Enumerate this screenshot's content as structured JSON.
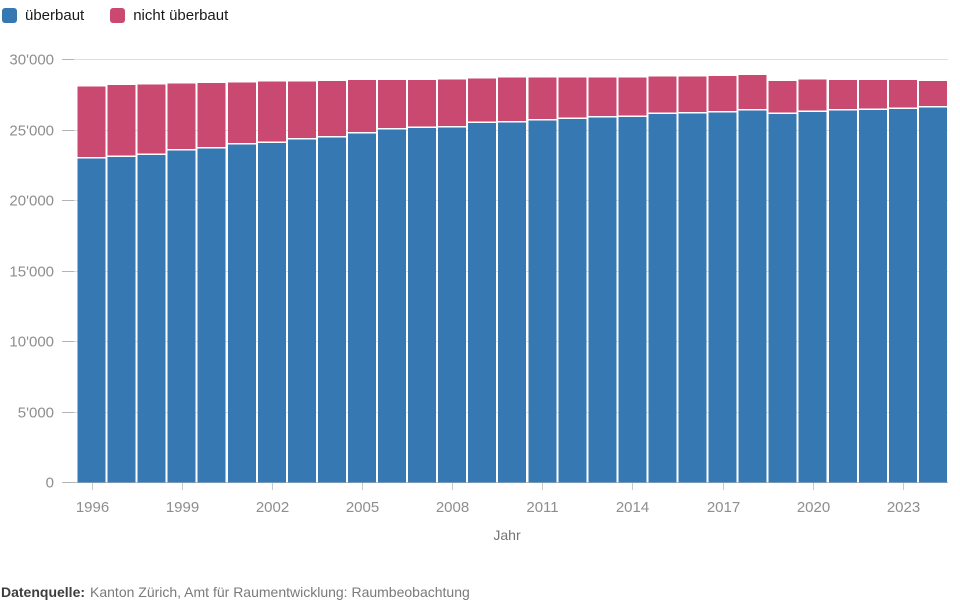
{
  "legend": {
    "items": [
      {
        "label": "überbaut",
        "color": "#3679B2"
      },
      {
        "label": "nicht überbaut",
        "color": "#C94971"
      }
    ]
  },
  "chart_data": {
    "type": "bar",
    "stacked": true,
    "title": "",
    "xlabel": "Jahr",
    "ylabel": "",
    "ylim": [
      0,
      30000
    ],
    "grid": true,
    "legend_position": "top-left",
    "categories": [
      1996,
      1997,
      1998,
      1999,
      2000,
      2001,
      2002,
      2003,
      2004,
      2005,
      2006,
      2007,
      2008,
      2009,
      2010,
      2011,
      2012,
      2013,
      2014,
      2015,
      2016,
      2017,
      2018,
      2019,
      2020,
      2021,
      2022,
      2023,
      2024
    ],
    "series": [
      {
        "name": "überbaut",
        "color": "#3679B2",
        "values": [
          22950,
          23050,
          23200,
          23500,
          23650,
          23950,
          24050,
          24300,
          24450,
          24700,
          25000,
          25100,
          25150,
          25450,
          25500,
          25650,
          25750,
          25850,
          25900,
          26100,
          26150,
          26200,
          26350,
          26100,
          26250,
          26350,
          26400,
          26450,
          26550
        ]
      },
      {
        "name": "nicht überbaut",
        "color": "#C94971",
        "values": [
          5100,
          5100,
          5000,
          4750,
          4650,
          4400,
          4350,
          4100,
          4000,
          3800,
          3500,
          3400,
          3400,
          3150,
          3200,
          3050,
          2950,
          2850,
          2800,
          2650,
          2600,
          2600,
          2500,
          2350,
          2300,
          2150,
          2100,
          2050,
          1900
        ]
      }
    ],
    "y_ticks": [
      {
        "value": 30000,
        "label": "30'000"
      },
      {
        "value": 25000,
        "label": "25'000"
      },
      {
        "value": 20000,
        "label": "20'000"
      },
      {
        "value": 15000,
        "label": "15'000"
      },
      {
        "value": 10000,
        "label": "10'000"
      },
      {
        "value": 5000,
        "label": "5'000"
      },
      {
        "value": 0,
        "label": "0"
      }
    ],
    "x_ticks": [
      {
        "year": 1996,
        "label": "1996"
      },
      {
        "year": 1999,
        "label": "1999"
      },
      {
        "year": 2002,
        "label": "2002"
      },
      {
        "year": 2005,
        "label": "2005"
      },
      {
        "year": 2008,
        "label": "2008"
      },
      {
        "year": 2011,
        "label": "2011"
      },
      {
        "year": 2014,
        "label": "2014"
      },
      {
        "year": 2017,
        "label": "2017"
      },
      {
        "year": 2020,
        "label": "2020"
      },
      {
        "year": 2023,
        "label": "2023"
      }
    ]
  },
  "footer": {
    "source_label": "Datenquelle:",
    "source_text": "Kanton Zürich, Amt für Raumentwicklung: Raumbeobachtung"
  }
}
